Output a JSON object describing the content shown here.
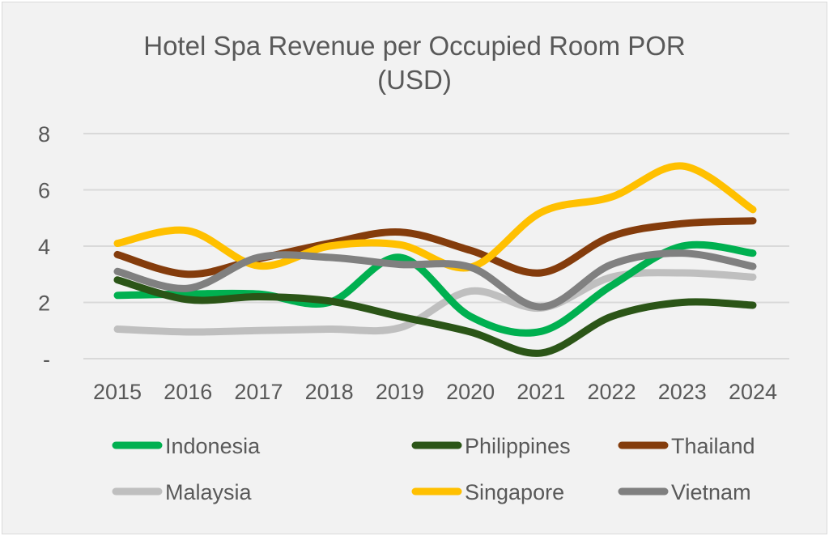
{
  "chart_data": {
    "type": "line",
    "title_line1": "Hotel Spa Revenue per Occupied Room POR",
    "title_line2": "(USD)",
    "xlabel": "",
    "ylabel": "",
    "categories": [
      "2015",
      "2016",
      "2017",
      "2018",
      "2019",
      "2020",
      "2021",
      "2022",
      "2023",
      "2024"
    ],
    "ylim": [
      0,
      8
    ],
    "yticks": [
      {
        "value": 0,
        "label": "-"
      },
      {
        "value": 2,
        "label": "2"
      },
      {
        "value": 4,
        "label": "4"
      },
      {
        "value": 6,
        "label": "6"
      },
      {
        "value": 8,
        "label": "8"
      }
    ],
    "grid": true,
    "smooth": true,
    "legend_position": "bottom",
    "series": [
      {
        "name": "Indonesia",
        "color": "#00B050",
        "values": [
          2.25,
          2.3,
          2.3,
          2.0,
          3.6,
          1.5,
          0.97,
          2.6,
          4.0,
          3.75
        ]
      },
      {
        "name": "Philippines",
        "color": "#2B5517",
        "values": [
          2.8,
          2.1,
          2.2,
          2.05,
          1.5,
          0.95,
          0.2,
          1.5,
          2.0,
          1.9
        ]
      },
      {
        "name": "Thailand",
        "color": "#843C0C",
        "values": [
          3.7,
          3.0,
          3.55,
          4.1,
          4.5,
          3.85,
          3.05,
          4.35,
          4.8,
          4.9
        ]
      },
      {
        "name": "Malaysia",
        "color": "#BFBFBF",
        "values": [
          1.05,
          0.95,
          1.0,
          1.05,
          1.1,
          2.4,
          1.8,
          2.9,
          3.05,
          2.9
        ]
      },
      {
        "name": "Singapore",
        "color": "#FFC000",
        "values": [
          4.1,
          4.55,
          3.3,
          4.0,
          4.05,
          3.25,
          5.2,
          5.75,
          6.85,
          5.3
        ]
      },
      {
        "name": "Vietnam",
        "color": "#808080",
        "values": [
          3.1,
          2.5,
          3.6,
          3.6,
          3.35,
          3.25,
          1.84,
          3.35,
          3.75,
          3.28
        ]
      }
    ]
  }
}
